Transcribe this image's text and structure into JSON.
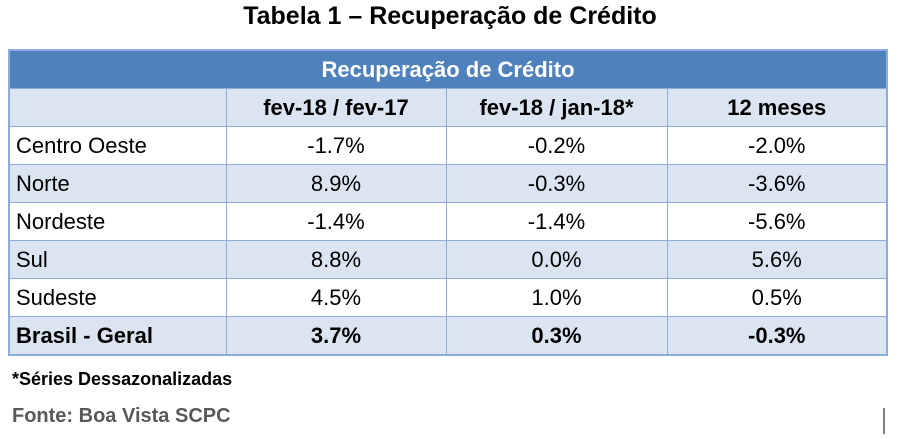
{
  "title": "Tabela 1 – Recuperação de Crédito",
  "table": {
    "banner": "Recuperação de Crédito",
    "headers": [
      "",
      "fev-18 / fev-17",
      "fev-18 / jan-18*",
      "12 meses"
    ],
    "rows": [
      {
        "region": "Centro Oeste",
        "yoy": "-1.7%",
        "mom": "-0.2%",
        "ttm": "-2.0%"
      },
      {
        "region": "Norte",
        "yoy": "8.9%",
        "mom": "-0.3%",
        "ttm": "-3.6%"
      },
      {
        "region": "Nordeste",
        "yoy": "-1.4%",
        "mom": "-1.4%",
        "ttm": "-5.6%"
      },
      {
        "region": "Sul",
        "yoy": "8.8%",
        "mom": "0.0%",
        "ttm": "5.6%"
      },
      {
        "region": "Sudeste",
        "yoy": "4.5%",
        "mom": "1.0%",
        "ttm": "0.5%"
      },
      {
        "region": "Brasil - Geral",
        "yoy": "3.7%",
        "mom": "0.3%",
        "ttm": "-0.3%"
      }
    ]
  },
  "footnote": "*Séries Dessazonalizadas",
  "source": "Fonte: Boa Vista SCPC",
  "colors": {
    "banner": "#4f81bd",
    "row_shade": "#dbe5f1",
    "border": "#8faadc"
  }
}
